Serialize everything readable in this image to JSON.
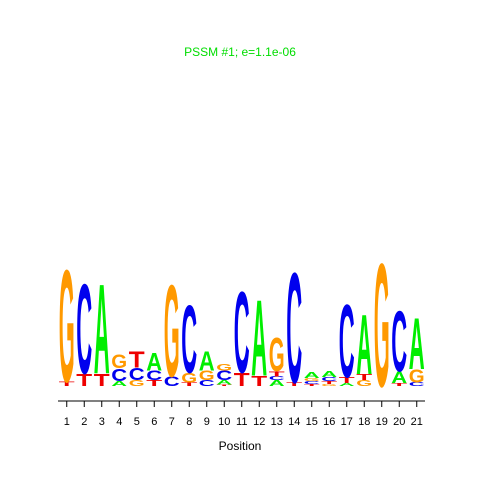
{
  "chart_data": {
    "type": "sequence-logo",
    "title": "PSSM #1; e=1.1e-06",
    "xlabel": "Position",
    "ylabel": "",
    "colors": {
      "A": "#00ee00",
      "C": "#0000ee",
      "G": "#ff9900",
      "T": "#ee0000",
      "title": "#00dd00"
    },
    "ylim": [
      0,
      2
    ],
    "grid": false,
    "positions": [
      {
        "label": "1",
        "stack": [
          {
            "letter": "T",
            "value": 0.06
          },
          {
            "letter": "G",
            "value": 1.54
          }
        ]
      },
      {
        "label": "2",
        "stack": [
          {
            "letter": "T",
            "value": 0.17
          },
          {
            "letter": "C",
            "value": 1.23
          }
        ]
      },
      {
        "label": "3",
        "stack": [
          {
            "letter": "T",
            "value": 0.17
          },
          {
            "letter": "A",
            "value": 1.23
          }
        ]
      },
      {
        "label": "4",
        "stack": [
          {
            "letter": "A",
            "value": 0.07
          },
          {
            "letter": "C",
            "value": 0.17
          },
          {
            "letter": "G",
            "value": 0.19
          }
        ]
      },
      {
        "label": "5",
        "stack": [
          {
            "letter": "G",
            "value": 0.08
          },
          {
            "letter": "C",
            "value": 0.17
          },
          {
            "letter": "T",
            "value": 0.22
          }
        ]
      },
      {
        "label": "6",
        "stack": [
          {
            "letter": "T",
            "value": 0.08
          },
          {
            "letter": "C",
            "value": 0.13
          },
          {
            "letter": "A",
            "value": 0.24
          }
        ]
      },
      {
        "label": "7",
        "stack": [
          {
            "letter": "C",
            "value": 0.13
          },
          {
            "letter": "G",
            "value": 1.26
          }
        ]
      },
      {
        "label": "8",
        "stack": [
          {
            "letter": "T",
            "value": 0.05
          },
          {
            "letter": "G",
            "value": 0.13
          },
          {
            "letter": "C",
            "value": 0.93
          }
        ]
      },
      {
        "label": "9",
        "stack": [
          {
            "letter": "C",
            "value": 0.08
          },
          {
            "letter": "G",
            "value": 0.13
          },
          {
            "letter": "A",
            "value": 0.27
          }
        ]
      },
      {
        "label": "10",
        "stack": [
          {
            "letter": "T",
            "value": 0.02
          },
          {
            "letter": "A",
            "value": 0.06
          },
          {
            "letter": "C",
            "value": 0.13
          },
          {
            "letter": "G",
            "value": 0.09
          }
        ]
      },
      {
        "label": "11",
        "stack": [
          {
            "letter": "T",
            "value": 0.18
          },
          {
            "letter": "C",
            "value": 1.11
          }
        ]
      },
      {
        "label": "12",
        "stack": [
          {
            "letter": "T",
            "value": 0.14
          },
          {
            "letter": "A",
            "value": 1.04
          }
        ]
      },
      {
        "label": "13",
        "stack": [
          {
            "letter": "A",
            "value": 0.08
          },
          {
            "letter": "C",
            "value": 0.05
          },
          {
            "letter": "T",
            "value": 0.07
          },
          {
            "letter": "G",
            "value": 0.46
          }
        ]
      },
      {
        "label": "14",
        "stack": [
          {
            "letter": "T",
            "value": 0.05
          },
          {
            "letter": "C",
            "value": 1.51
          }
        ]
      },
      {
        "label": "15",
        "stack": [
          {
            "letter": "T",
            "value": 0.03
          },
          {
            "letter": "C",
            "value": 0.04
          },
          {
            "letter": "G",
            "value": 0.04
          },
          {
            "letter": "A",
            "value": 0.08
          }
        ]
      },
      {
        "label": "16",
        "stack": [
          {
            "letter": "G",
            "value": 0.03
          },
          {
            "letter": "T",
            "value": 0.04
          },
          {
            "letter": "C",
            "value": 0.05
          },
          {
            "letter": "A",
            "value": 0.08
          }
        ]
      },
      {
        "label": "17",
        "stack": [
          {
            "letter": "A",
            "value": 0.04
          },
          {
            "letter": "T",
            "value": 0.08
          },
          {
            "letter": "C",
            "value": 1.0
          }
        ]
      },
      {
        "label": "18",
        "stack": [
          {
            "letter": "G",
            "value": 0.08
          },
          {
            "letter": "T",
            "value": 0.08
          },
          {
            "letter": "A",
            "value": 0.82
          }
        ]
      },
      {
        "label": "19",
        "stack": [
          {
            "letter": "G",
            "value": 1.69
          }
        ]
      },
      {
        "label": "20",
        "stack": [
          {
            "letter": "T",
            "value": 0.04
          },
          {
            "letter": "A",
            "value": 0.16
          },
          {
            "letter": "C",
            "value": 0.83
          }
        ]
      },
      {
        "label": "21",
        "stack": [
          {
            "letter": "C",
            "value": 0.05
          },
          {
            "letter": "G",
            "value": 0.18
          },
          {
            "letter": "A",
            "value": 0.7
          }
        ]
      }
    ]
  }
}
